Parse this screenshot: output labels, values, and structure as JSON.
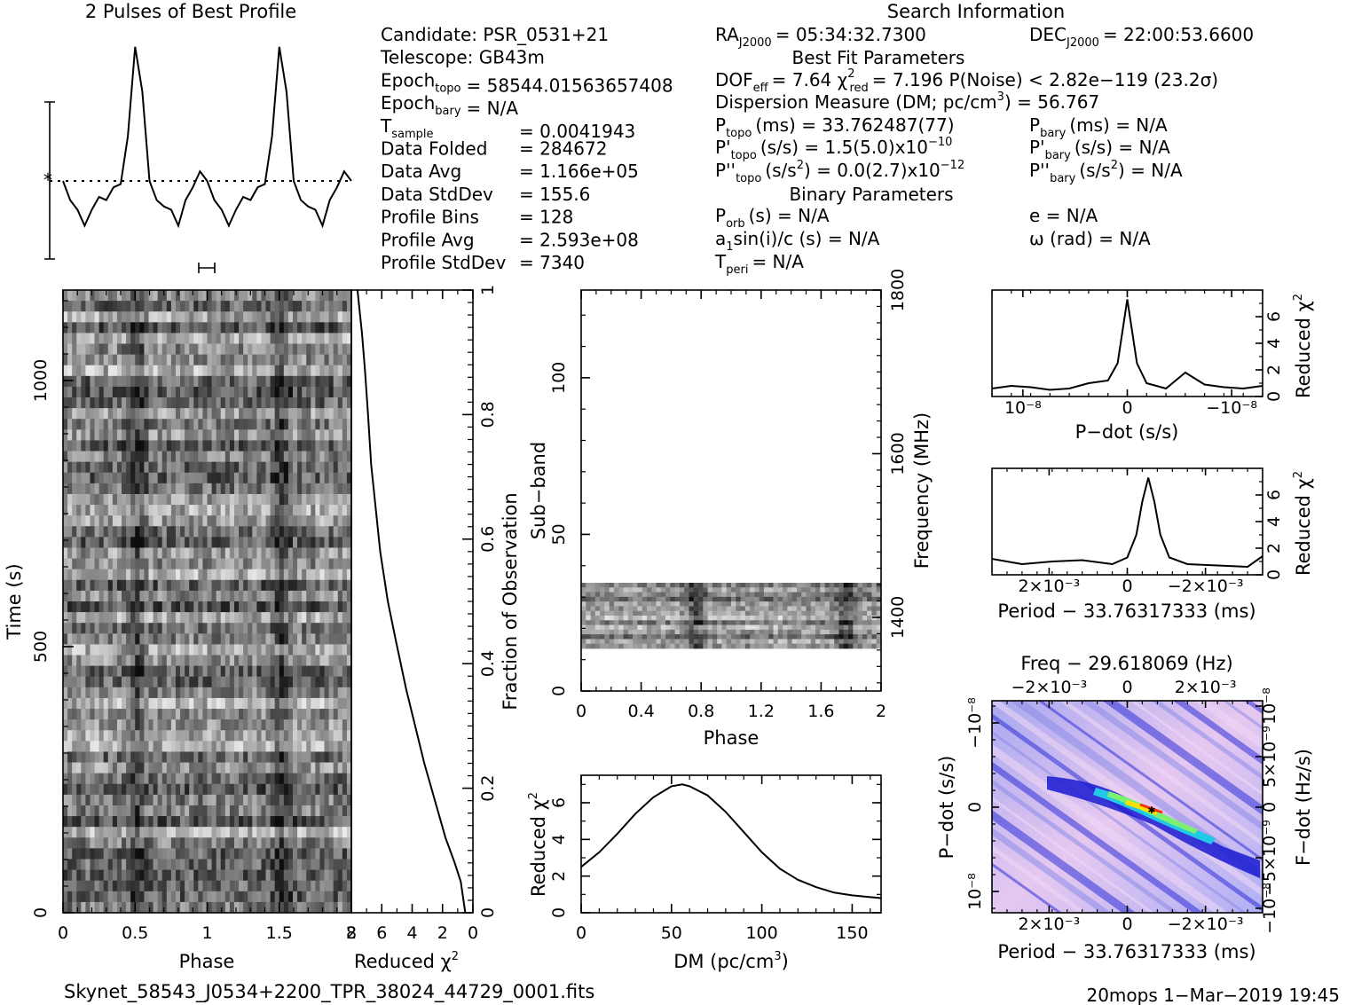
{
  "titles": {
    "profile": "2 Pulses of Best Profile",
    "search": "Search Information",
    "best_fit": "Best Fit Parameters",
    "binary": "Binary Parameters",
    "freq_title": "Freq − 29.618069 (Hz)",
    "filename": "Skynet_58543_J0534+2200_TPR_38024_44729_0001.fits",
    "footer_right": "20mops  1−Mar−2019 19:45"
  },
  "info_left": [
    {
      "label": "Candidate:  PSR_0531+21",
      "value": ""
    },
    {
      "label": "Telescope:  GB43m",
      "value": ""
    },
    {
      "label": "Epoch",
      "sub": "topo",
      "value": "= 58544.01563657408"
    },
    {
      "label": "Epoch",
      "sub": "bary",
      "value": "= N/A"
    },
    {
      "label": "T",
      "sub": "sample",
      "value": "=   0.0041943"
    },
    {
      "label": "Data Folded",
      "value": "=   284672"
    },
    {
      "label": "Data Avg",
      "value": "=   1.166e+05"
    },
    {
      "label": "Data StdDev",
      "value": "=   155.6"
    },
    {
      "label": "Profile Bins",
      "value": "=   128"
    },
    {
      "label": "Profile Avg",
      "value": "=   2.593e+08"
    },
    {
      "label": "Profile StdDev",
      "value": "=   7340"
    }
  ],
  "info_mid": {
    "ra_label": "RA",
    "ra_sub": "J2000",
    "ra_value": "= 05:34:32.7300",
    "dec_label": "DEC",
    "dec_sub": "J2000",
    "dec_value": "= 22:00:53.6600",
    "dof": "DOF",
    "dof_sub": "eff",
    "dof_value": "= 7.64  χ",
    "chi_sub": "red",
    "chi_value": "= 7.196   P(Noise) < 2.82e−119   (23.2σ)",
    "dm": "Dispersion Measure (DM; pc/cm",
    "dm_value": ") = 56.767",
    "ptopo": "P",
    "ptopo_sub": "topo",
    "ptopo_value": "(ms) =   33.762487(77)",
    "pbary": "P",
    "pbary_sub": "bary",
    "pbary_value": "(ms) = N/A",
    "pdtopo": "P'",
    "pdtopo_value": "(s/s) =   1.5(5.0)x10",
    "pdtopo_exp": "−10",
    "pdbary": "P'",
    "pdbary_value": "(s/s) = N/A",
    "pddtopo": "P''",
    "pddtopo_value": "(s/s",
    "pddtopo_value2": ") = 0.0(2.7)x10",
    "pddtopo_exp": "−12",
    "pddbary": "P''",
    "pddbary_value": "(s/s",
    "pddbary_value2": ") = N/A",
    "porb": "P",
    "porb_sub": "orb",
    "porb_value": "(s) = N/A",
    "e_value": "e = N/A",
    "a1": "a",
    "a1_rest": "sin(i)/c (s) = N/A",
    "omega_value": "ω (rad) = N/A",
    "tperi": "T",
    "tperi_sub": "peri",
    "tperi_value": "= N/A"
  },
  "axes": {
    "phase": "Phase",
    "time": "Time (s)",
    "reduced_chi2": "Reduced χ",
    "fraction": "Fraction of Observation",
    "subband": "Sub−band",
    "frequency": "Frequency (MHz)",
    "dm": "DM (pc/cm",
    "pdot": "P−dot (s/s)",
    "period": "Period − 33.76317333 (ms)",
    "fdot": "F−dot (Hz/s)"
  },
  "chart_data": [
    {
      "name": "profile",
      "type": "line",
      "title": "2 Pulses of Best Profile",
      "x": [
        0.0,
        0.05,
        0.1,
        0.15,
        0.2,
        0.25,
        0.3,
        0.35,
        0.4,
        0.45,
        0.5,
        0.55,
        0.6,
        0.65,
        0.7,
        0.75,
        0.8,
        0.85,
        0.9,
        0.95,
        1.0,
        1.05,
        1.1,
        1.15,
        1.2,
        1.25,
        1.3,
        1.35,
        1.4,
        1.45,
        1.5,
        1.55,
        1.6,
        1.65,
        1.7,
        1.75,
        1.8,
        1.85,
        1.9,
        1.95,
        2.0
      ],
      "y": [
        0.0,
        -0.3,
        -0.45,
        -0.7,
        -0.45,
        -0.25,
        -0.3,
        -0.1,
        -0.05,
        0.7,
        2.1,
        1.4,
        0.0,
        -0.3,
        -0.4,
        -0.45,
        -0.7,
        -0.3,
        -0.1,
        0.15,
        0.0,
        -0.3,
        -0.45,
        -0.7,
        -0.45,
        -0.25,
        -0.3,
        -0.1,
        -0.05,
        0.7,
        2.1,
        1.4,
        0.0,
        -0.3,
        -0.4,
        -0.45,
        -0.7,
        -0.3,
        -0.1,
        0.15,
        0.0
      ],
      "xlabel": "Phase"
    },
    {
      "name": "time_phase",
      "type": "heatmap",
      "xlim": [
        0,
        2
      ],
      "ylim": [
        0,
        1170
      ],
      "xlabel": "Phase",
      "ylabel": "Time (s)",
      "x_ticks": [
        0,
        0.5,
        1,
        1.5,
        2
      ],
      "y_ticks": [
        0,
        500,
        1000
      ]
    },
    {
      "name": "time_chi2",
      "type": "line",
      "x": [
        0.5,
        0.8,
        1.2,
        1.8,
        2.5,
        3.2,
        3.8,
        4.4,
        5.1,
        5.6,
        6.1,
        6.4,
        6.7,
        6.9,
        7.1,
        7.3,
        7.6
      ],
      "y": [
        0.0,
        0.05,
        0.08,
        0.12,
        0.18,
        0.24,
        0.3,
        0.36,
        0.44,
        0.5,
        0.58,
        0.65,
        0.72,
        0.8,
        0.87,
        0.93,
        1.0
      ],
      "xlim": [
        8,
        0
      ],
      "ylim": [
        0,
        1
      ],
      "xlabel": "Reduced χ",
      "ylabel": "Fraction of Observation",
      "x_ticks": [
        8,
        6,
        4,
        2,
        0
      ],
      "y_ticks": [
        0.2,
        0.4,
        0.6,
        0.8,
        1
      ]
    },
    {
      "name": "subband_phase",
      "type": "heatmap",
      "xlim": [
        0,
        2
      ],
      "ylim": [
        0,
        128
      ],
      "xlabel": "Phase",
      "ylabel": "Sub−band",
      "x_ticks": [
        0,
        0.4,
        0.8,
        1.2,
        1.6,
        2
      ],
      "y_ticks": [
        0,
        50,
        100
      ],
      "right_ticks": [
        1400,
        1600,
        1800
      ],
      "ylabel_right": "Frequency (MHz)"
    },
    {
      "name": "dm_chi2",
      "type": "line",
      "x": [
        0,
        10,
        20,
        30,
        40,
        50,
        56,
        60,
        70,
        80,
        90,
        100,
        110,
        120,
        130,
        140,
        150,
        160,
        166
      ],
      "y": [
        2.5,
        3.3,
        4.3,
        5.4,
        6.3,
        6.9,
        7.0,
        6.9,
        6.4,
        5.5,
        4.4,
        3.3,
        2.4,
        1.8,
        1.4,
        1.1,
        0.95,
        0.85,
        0.8
      ],
      "xlim": [
        0,
        166
      ],
      "ylim": [
        0,
        7.5
      ],
      "xlabel": "DM (pc/cm3)",
      "ylabel": "Reduced χ",
      "x_ticks": [
        0,
        50,
        100,
        150
      ],
      "y_ticks": [
        0,
        2,
        4,
        6
      ]
    },
    {
      "name": "pdot_chi2",
      "type": "line",
      "x": [
        -1.4,
        -1.2,
        -1.0,
        -0.8,
        -0.6,
        -0.4,
        -0.2,
        -0.1,
        0.0,
        0.1,
        0.2,
        0.4,
        0.6,
        0.8,
        1.0,
        1.2,
        1.4
      ],
      "y": [
        0.6,
        0.8,
        0.7,
        0.5,
        0.6,
        1.0,
        1.2,
        2.5,
        7.3,
        2.5,
        1.0,
        0.6,
        1.8,
        0.9,
        0.7,
        0.6,
        0.8
      ],
      "xlim": [
        -1.4,
        1.4
      ],
      "ylim": [
        0,
        8
      ],
      "xlabel": "P−dot (s/s)",
      "ylabel": "Reduced χ",
      "x_tick_labels": [
        "10⁻⁸",
        "0",
        "−10⁻⁸"
      ],
      "y_ticks": [
        0,
        2,
        4,
        6
      ]
    },
    {
      "name": "period_chi2",
      "type": "line",
      "x": [
        -4.5,
        -3.5,
        -2.5,
        -1.5,
        -0.5,
        0,
        0.3,
        0.5,
        0.7,
        0.9,
        1.1,
        1.4,
        2,
        3,
        4,
        4.5
      ],
      "y": [
        1.2,
        0.8,
        1.0,
        1.1,
        0.8,
        1.3,
        3.0,
        5.5,
        7.3,
        5.5,
        3.0,
        1.3,
        0.8,
        0.7,
        0.6,
        1.4
      ],
      "xlim": [
        -4.5,
        4.5
      ],
      "ylim": [
        0,
        8
      ],
      "xlabel": "Period − 33.76317333 (ms)",
      "ylabel": "Reduced χ",
      "x_tick_labels": [
        "2×10⁻³",
        "0",
        "−2×10⁻³"
      ],
      "y_ticks": [
        0,
        2,
        4,
        6
      ]
    },
    {
      "name": "period_pdot",
      "type": "heatmap",
      "title": "Freq − 29.618069 (Hz)",
      "xlabel": "Period − 33.76317333 (ms)",
      "ylabel": "P−dot (s/s)",
      "ylabel_right": "F−dot (Hz/s)",
      "top_tick_labels": [
        "−2×10⁻³",
        "0",
        "2×10⁻³"
      ],
      "bottom_tick_labels": [
        "2×10⁻³",
        "0",
        "−2×10⁻³"
      ],
      "left_tick_labels": [
        "−10⁻⁸",
        "0",
        "10⁻⁸"
      ],
      "right_tick_labels": [
        "10⁻⁸",
        "5×10⁻⁹",
        "0",
        "−5×10⁻⁹",
        "−10⁻⁸"
      ]
    }
  ]
}
